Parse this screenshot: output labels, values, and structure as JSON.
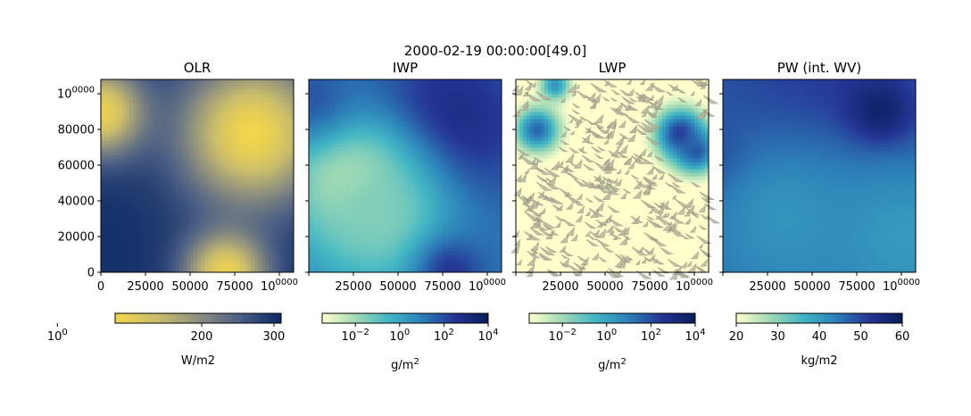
{
  "figure": {
    "suptitle": "2000-02-19 00:00:00[49.0]"
  },
  "chart_data": [
    {
      "type": "heatmap",
      "title": "OLR",
      "xlim": [
        0,
        108000
      ],
      "ylim": [
        0,
        108000
      ],
      "xticks": [
        "0",
        "25000",
        "50000",
        "75000",
        "100000"
      ],
      "yticks": [
        "0",
        "20000",
        "40000",
        "60000",
        "80000",
        "100000"
      ],
      "colormap": [
        "#f2d54b",
        "#c9bc6c",
        "#8e8f7e",
        "#4b5f85",
        "#0a2865"
      ],
      "colorbar": {
        "range": [
          80,
          310
        ],
        "ticks": [
          "100",
          "200",
          "300"
        ],
        "label": "W/m2",
        "scale": "linear"
      },
      "field": {
        "base": 300,
        "blobs": [
          {
            "x": 85000,
            "y": 78000,
            "r": 28000,
            "value": 80
          },
          {
            "x": 0,
            "y": 90000,
            "r": 17000,
            "value": 90
          },
          {
            "x": 70000,
            "y": 0,
            "r": 16000,
            "value": 90
          }
        ]
      }
    },
    {
      "type": "heatmap",
      "title": "IWP",
      "xlim": [
        0,
        108000
      ],
      "ylim": [
        0,
        108000
      ],
      "xticks": [
        "25000",
        "50000",
        "75000",
        "100000"
      ],
      "colormap": [
        "#ffffcc",
        "#a1dab4",
        "#41b6c4",
        "#2c7fb8",
        "#253494",
        "#081d58"
      ],
      "colorbar": {
        "range": [
          -3.5,
          4
        ],
        "ticks": [
          "10-2",
          "100",
          "102",
          "104"
        ],
        "label": "g/m2",
        "scale": "log"
      },
      "field": {
        "base": 1.2,
        "blobs": [
          {
            "x": 78000,
            "y": 82000,
            "r": 32000,
            "value": 3.2
          },
          {
            "x": 22000,
            "y": 52000,
            "r": 24000,
            "value": -2.8
          },
          {
            "x": 40000,
            "y": 30000,
            "r": 30000,
            "value": -1.5
          },
          {
            "x": 80000,
            "y": 0,
            "r": 14000,
            "value": 2.5
          },
          {
            "x": 0,
            "y": 100000,
            "r": 18000,
            "value": 1.8
          }
        ]
      }
    },
    {
      "type": "heatmap",
      "title": "LWP",
      "xlim": [
        0,
        108000
      ],
      "ylim": [
        0,
        108000
      ],
      "xticks": [
        "25000",
        "50000",
        "75000",
        "100000"
      ],
      "colormap": [
        "#ffffcc",
        "#a1dab4",
        "#41b6c4",
        "#2c7fb8",
        "#253494",
        "#081d58"
      ],
      "colorbar": {
        "range": [
          -3.5,
          4
        ],
        "ticks": [
          "10-2",
          "100",
          "102",
          "104"
        ],
        "label": "g/m2",
        "scale": "log"
      },
      "field": {
        "base": -4,
        "blobs": [
          {
            "x": 12000,
            "y": 80000,
            "r": 9000,
            "value": 1.5
          },
          {
            "x": 92000,
            "y": 78000,
            "r": 10000,
            "value": 2.5
          },
          {
            "x": 101000,
            "y": 68000,
            "r": 9000,
            "value": 1.8
          },
          {
            "x": 22000,
            "y": 105000,
            "r": 6000,
            "value": 0.5
          }
        ]
      }
    },
    {
      "type": "heatmap",
      "title": "PW (int. WV)",
      "xlim": [
        0,
        108000
      ],
      "ylim": [
        0,
        108000
      ],
      "xticks": [
        "25000",
        "50000",
        "75000",
        "100000"
      ],
      "colormap": [
        "#ffffcc",
        "#a1dab4",
        "#41b6c4",
        "#2c7fb8",
        "#253494",
        "#081d58"
      ],
      "colorbar": {
        "range": [
          20,
          60
        ],
        "ticks": [
          "20",
          "30",
          "40",
          "50",
          "60"
        ],
        "label": "kg/m2",
        "scale": "linear"
      },
      "field": {
        "base": 47,
        "blobs": [
          {
            "x": 55000,
            "y": 88000,
            "r": 45000,
            "value": 53
          },
          {
            "x": 87000,
            "y": 87000,
            "r": 13000,
            "value": 63
          },
          {
            "x": 0,
            "y": 60000,
            "r": 14000,
            "value": 54
          },
          {
            "x": 100000,
            "y": 20000,
            "r": 35000,
            "value": 40
          },
          {
            "x": 35000,
            "y": 30000,
            "r": 38000,
            "value": 41
          }
        ]
      }
    }
  ]
}
